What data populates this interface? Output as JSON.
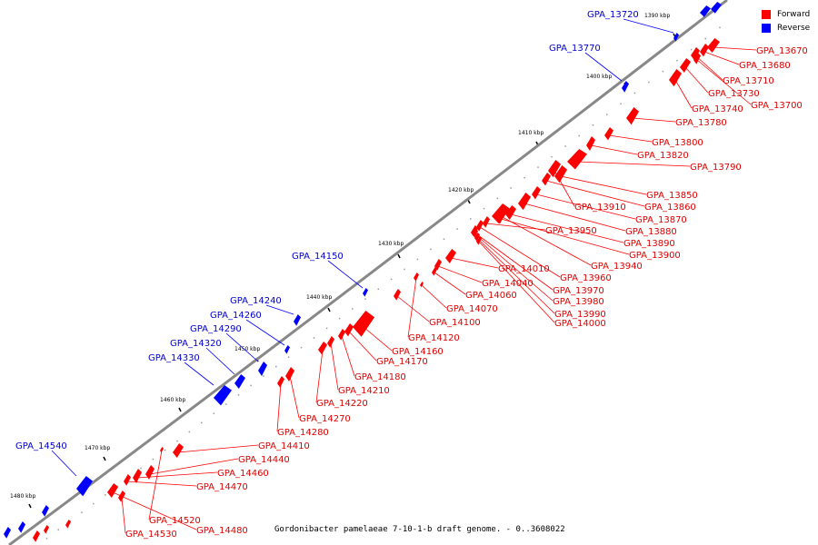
{
  "caption": "Gordonibacter pamelaeae 7-10-1-b draft genome. - 0..3608022",
  "legend": [
    {
      "label": "Forward",
      "color": "#ff0000"
    },
    {
      "label": "Reverse",
      "color": "#0000ff"
    }
  ],
  "colors": {
    "forward": "#ff0000",
    "reverse": "#0000ff",
    "backbone": "#888888",
    "label_forward": "#dd0000",
    "label_reverse": "#0000cc"
  },
  "ticks": [
    "1390 kbp",
    "1400 kbp",
    "1410 kbp",
    "1420 kbp",
    "1430 kbp",
    "1440 kbp",
    "1450 kbp",
    "1460 kbp",
    "1470 kbp",
    "1480 kbp"
  ],
  "forward_genes": [
    "GPA_13670",
    "GPA_13680",
    "GPA_13710",
    "GPA_13730",
    "GPA_13700",
    "GPA_13740",
    "GPA_13780",
    "GPA_13800",
    "GPA_13820",
    "GPA_13790",
    "GPA_13850",
    "GPA_13860",
    "GPA_13870",
    "GPA_13880",
    "GPA_13890",
    "GPA_13900",
    "GPA_13910",
    "GPA_13940",
    "GPA_13950",
    "GPA_13960",
    "GPA_13970",
    "GPA_13980",
    "GPA_13990",
    "GPA_14000",
    "GPA_14010",
    "GPA_14040",
    "GPA_14060",
    "GPA_14070",
    "GPA_14100",
    "GPA_14120",
    "GPA_14160",
    "GPA_14170",
    "GPA_14180",
    "GPA_14210",
    "GPA_14220",
    "GPA_14270",
    "GPA_14280",
    "GPA_14410",
    "GPA_14440",
    "GPA_14460",
    "GPA_14470",
    "GPA_14480",
    "GPA_14520",
    "GPA_14530"
  ],
  "reverse_genes": [
    "GPA_13720",
    "GPA_13770",
    "GPA_14150",
    "GPA_14240",
    "GPA_14260",
    "GPA_14290",
    "GPA_14320",
    "GPA_14330",
    "GPA_14540"
  ]
}
